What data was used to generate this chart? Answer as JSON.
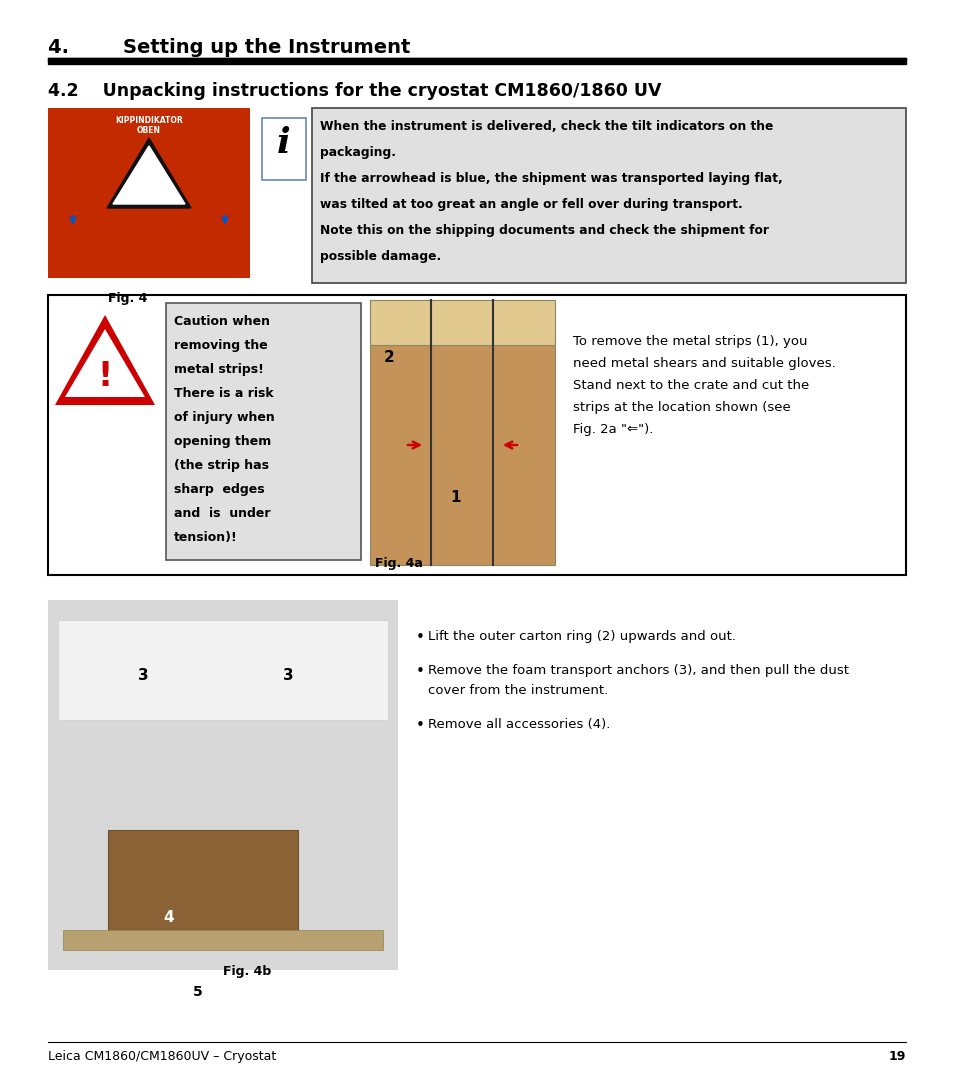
{
  "page_title": "4.        Setting up the Instrument",
  "section_title": "4.2    Unpacking instructions for the cryostat CM1860/1860 UV",
  "info_line1": "When the instrument is delivered, check the tilt indicators on the",
  "info_line2": "packaging.",
  "info_line3": "If the arrowhead is blue, the shipment was transported laying flat,",
  "info_line4": "was tilted at too great an angle or fell over during transport.",
  "info_line5": "Note this on the shipping documents and check the shipment for",
  "info_line6": "possible damage.",
  "fig4_label": "Fig. 4",
  "fig4a_label": "Fig. 4a",
  "fig4b_label": "Fig. 4b",
  "caution_lines": [
    "Caution when",
    "removing the",
    "metal strips!",
    "There is a risk",
    "of injury when",
    "opening them",
    "(the strip has",
    "sharp  edges",
    "and  is  under",
    "tension)!"
  ],
  "remove_lines": [
    "To remove the metal strips (",
    "need metal shears and suitable gloves.",
    "Stand next to the crate and cut the",
    "strips at the location shown (see",
    "Fig. 2a \"⇐\")."
  ],
  "remove_text_full": "To remove the metal strips (1), you\nneed metal shears and suitable gloves.\nStand next to the crate and cut the\nstrips at the location shown (see\nFig. 2a \"⇐\").",
  "bullet1_parts": [
    "Lift the outer carton ring (",
    "2",
    ") upwards and out."
  ],
  "bullet2_parts": [
    "Remove the foam transport anchors (",
    "3",
    "), and then pull the dust\ncover from the instrument."
  ],
  "bullet3_parts": [
    "Remove all accessories (",
    "4",
    ")."
  ],
  "footer_text": "Leica CM1860/CM1860UV – Cryostat",
  "page_number": "19",
  "bg_color": "#ffffff",
  "info_bg": "#e0e0e0",
  "caution_bg": "#e0e0e0",
  "title_color": "#000000",
  "bold_num_color": "#000000"
}
